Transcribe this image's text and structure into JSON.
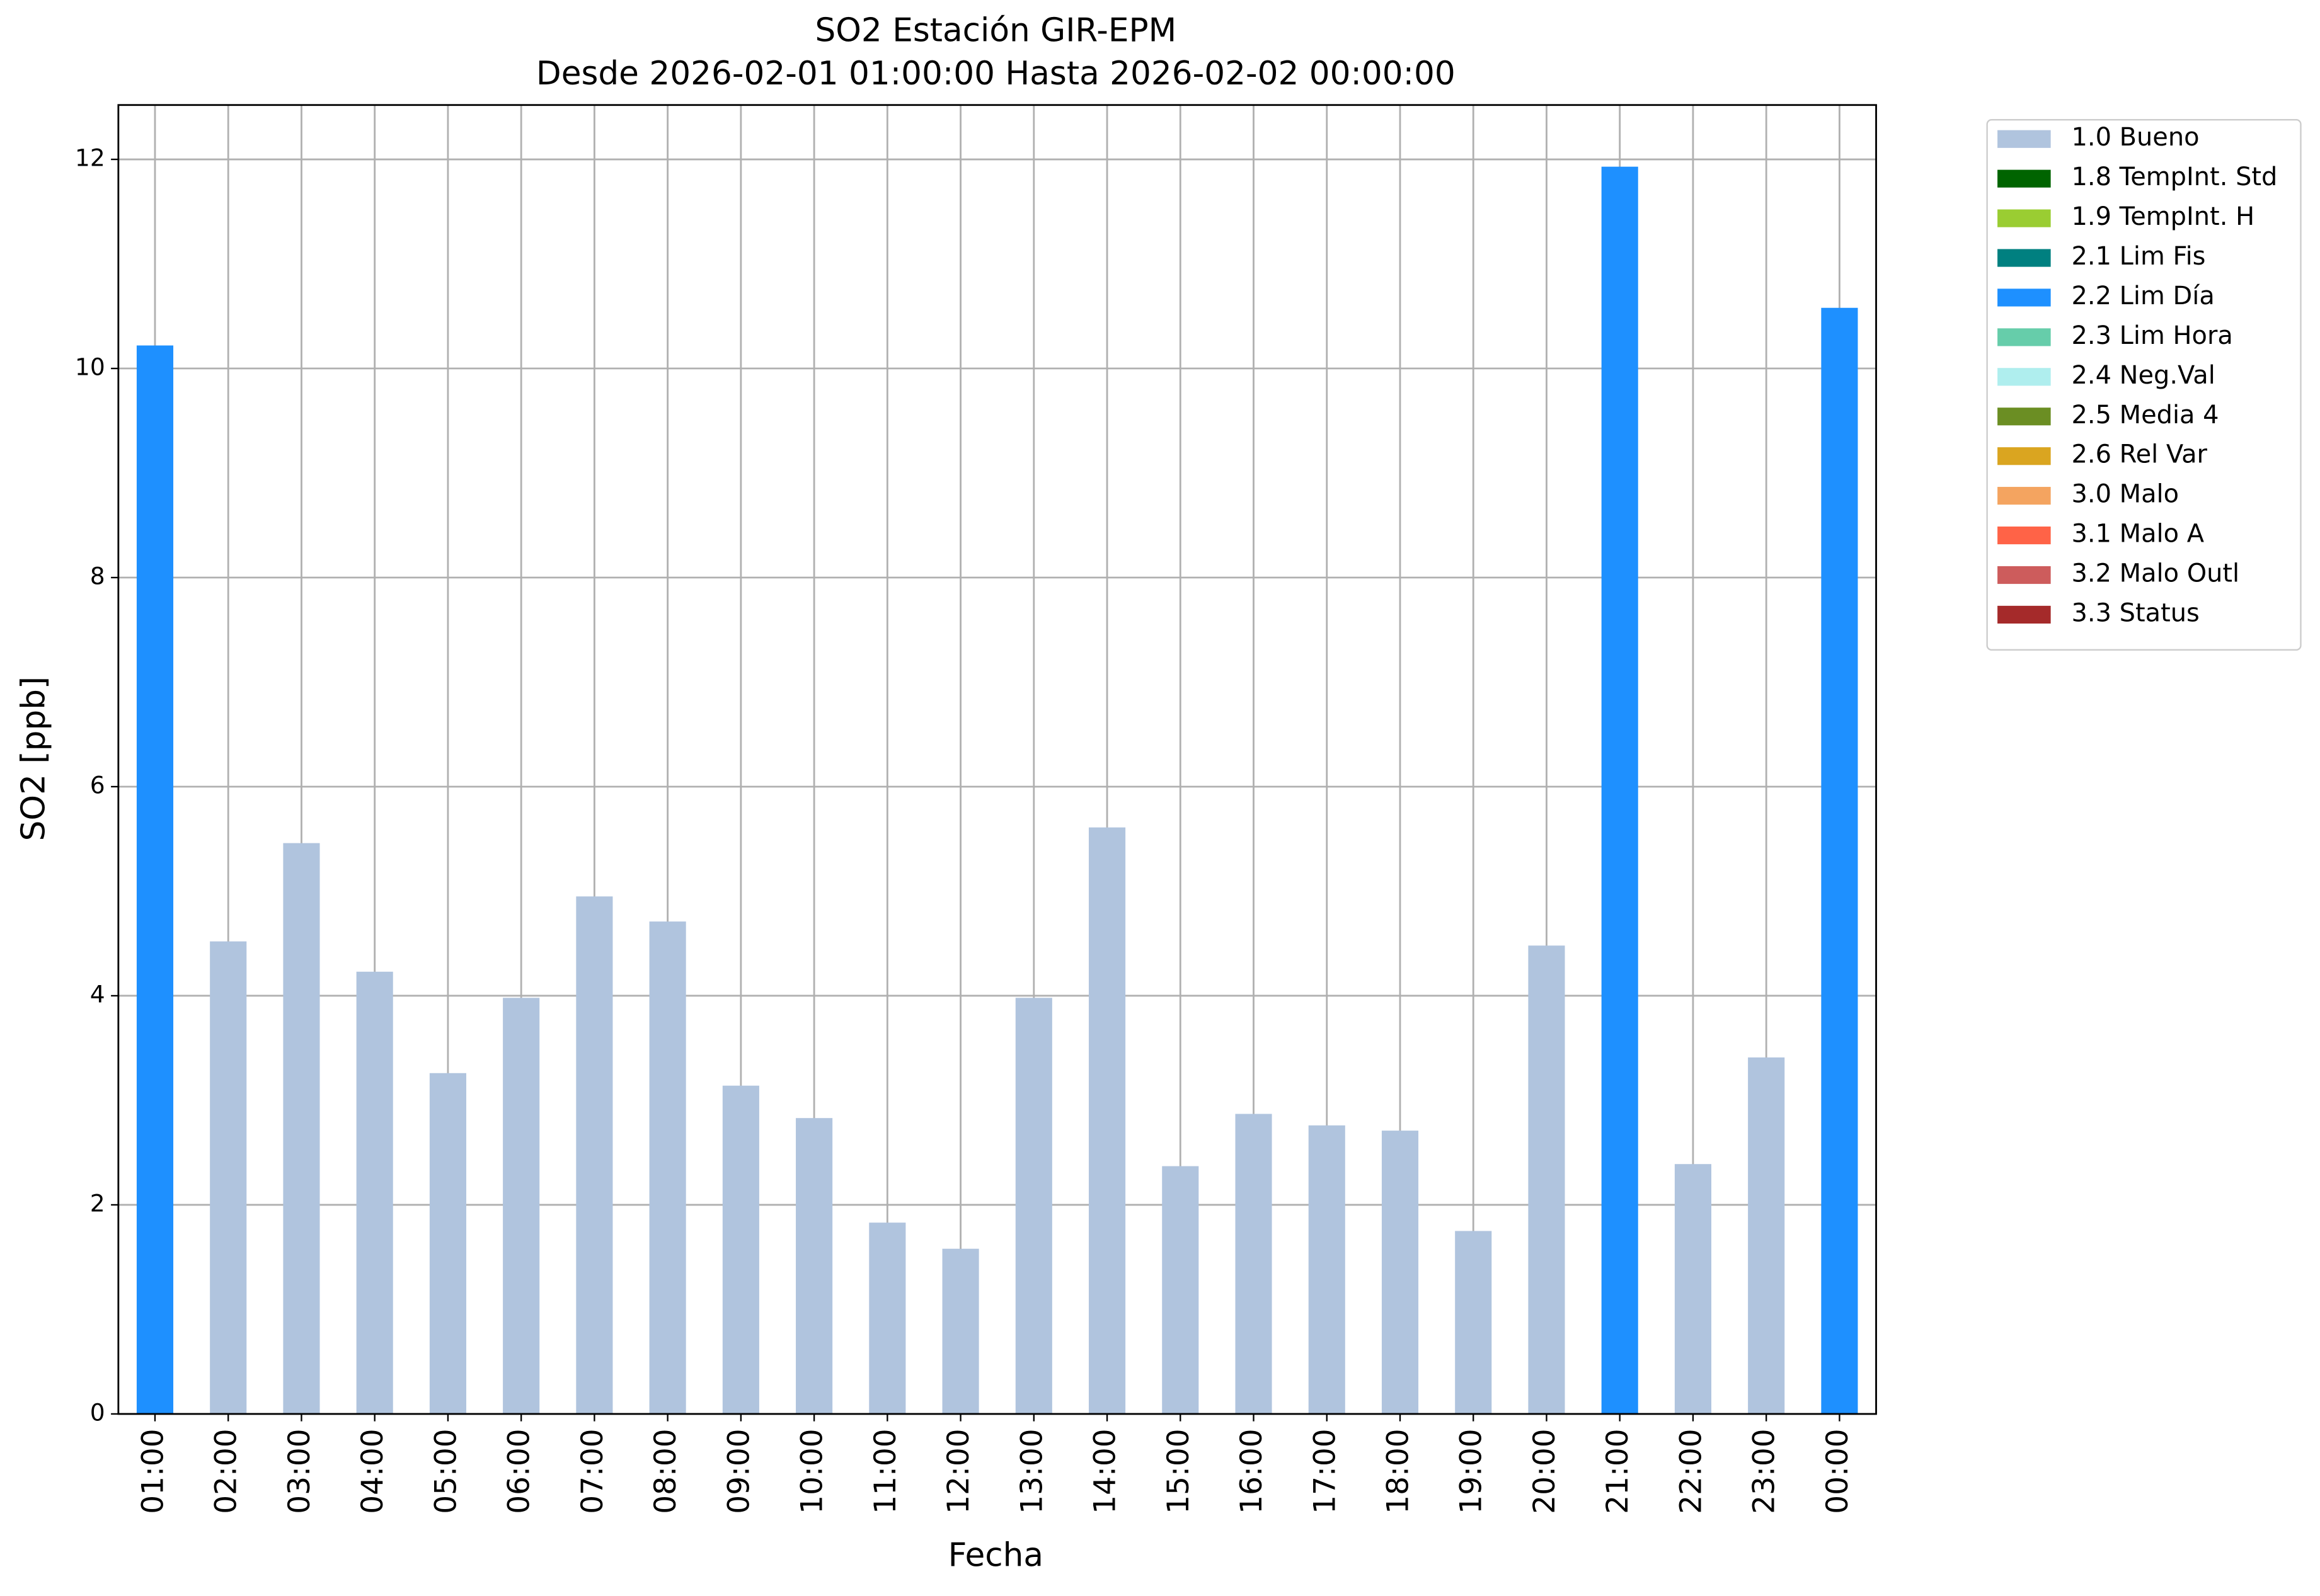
{
  "chart_data": {
    "type": "stacked_bar",
    "title": "SO2 Estación GIR-EPM",
    "subtitle": "Desde 2026-02-01 01:00:00 Hasta 2026-02-02 00:00:00",
    "x_label": "Fecha",
    "y_label": "SO2 [ppb]",
    "categories": [
      "01:00",
      "02:00",
      "03:00",
      "04:00",
      "05:00",
      "06:00",
      "07:00",
      "08:00",
      "09:00",
      "10:00",
      "11:00",
      "12:00",
      "13:00",
      "14:00",
      "15:00",
      "16:00",
      "17:00",
      "18:00",
      "19:00",
      "20:00",
      "21:00",
      "22:00",
      "23:00",
      "00:00"
    ],
    "series": [
      {
        "name": "1.0 Bueno",
        "color": "#b0c4de",
        "values": [
          null,
          4.52,
          5.46,
          4.23,
          3.26,
          3.98,
          4.95,
          4.71,
          3.14,
          2.83,
          1.83,
          1.58,
          3.98,
          5.61,
          2.37,
          2.87,
          2.76,
          2.71,
          1.75,
          4.48,
          null,
          2.39,
          3.41,
          null
        ]
      },
      {
        "name": "1.8 TempInt. Std",
        "color": "#006400",
        "values": [
          null,
          null,
          null,
          null,
          null,
          null,
          null,
          null,
          null,
          null,
          null,
          null,
          null,
          null,
          null,
          null,
          null,
          null,
          null,
          null,
          null,
          null,
          null,
          null
        ]
      },
      {
        "name": "1.9 TempInt. H",
        "color": "#9acd32",
        "values": [
          null,
          null,
          null,
          null,
          null,
          null,
          null,
          null,
          null,
          null,
          null,
          null,
          null,
          null,
          null,
          null,
          null,
          null,
          null,
          null,
          null,
          null,
          null,
          null
        ]
      },
      {
        "name": "2.1 Lim Fis",
        "color": "#008080",
        "values": [
          null,
          null,
          null,
          null,
          null,
          null,
          null,
          null,
          null,
          null,
          null,
          null,
          null,
          null,
          null,
          null,
          null,
          null,
          null,
          null,
          null,
          null,
          null,
          null
        ]
      },
      {
        "name": "2.2 Lim Día",
        "color": "#1e90ff",
        "values": [
          10.22,
          null,
          null,
          null,
          null,
          null,
          null,
          null,
          null,
          null,
          null,
          null,
          null,
          null,
          null,
          null,
          null,
          null,
          null,
          null,
          11.93,
          null,
          null,
          10.58
        ]
      },
      {
        "name": "2.3 Lim Hora",
        "color": "#66cdaa",
        "values": [
          null,
          null,
          null,
          null,
          null,
          null,
          null,
          null,
          null,
          null,
          null,
          null,
          null,
          null,
          null,
          null,
          null,
          null,
          null,
          null,
          null,
          null,
          null,
          null
        ]
      },
      {
        "name": "2.4 Neg.Val",
        "color": "#afeeee",
        "values": [
          null,
          null,
          null,
          null,
          null,
          null,
          null,
          null,
          null,
          null,
          null,
          null,
          null,
          null,
          null,
          null,
          null,
          null,
          null,
          null,
          null,
          null,
          null,
          null
        ]
      },
      {
        "name": "2.5 Media 4",
        "color": "#6b8e23",
        "values": [
          null,
          null,
          null,
          null,
          null,
          null,
          null,
          null,
          null,
          null,
          null,
          null,
          null,
          null,
          null,
          null,
          null,
          null,
          null,
          null,
          null,
          null,
          null,
          null
        ]
      },
      {
        "name": "2.6 Rel Var",
        "color": "#daa520",
        "values": [
          null,
          null,
          null,
          null,
          null,
          null,
          null,
          null,
          null,
          null,
          null,
          null,
          null,
          null,
          null,
          null,
          null,
          null,
          null,
          null,
          null,
          null,
          null,
          null
        ]
      },
      {
        "name": "3.0 Malo",
        "color": "#f4a460",
        "values": [
          null,
          null,
          null,
          null,
          null,
          null,
          null,
          null,
          null,
          null,
          null,
          null,
          null,
          null,
          null,
          null,
          null,
          null,
          null,
          null,
          null,
          null,
          null,
          null
        ]
      },
      {
        "name": "3.1 Malo A",
        "color": "#ff6347",
        "values": [
          null,
          null,
          null,
          null,
          null,
          null,
          null,
          null,
          null,
          null,
          null,
          null,
          null,
          null,
          null,
          null,
          null,
          null,
          null,
          null,
          null,
          null,
          null,
          null
        ]
      },
      {
        "name": "3.2 Malo Outl",
        "color": "#cd5c5c",
        "values": [
          null,
          null,
          null,
          null,
          null,
          null,
          null,
          null,
          null,
          null,
          null,
          null,
          null,
          null,
          null,
          null,
          null,
          null,
          null,
          null,
          null,
          null,
          null,
          null
        ]
      },
      {
        "name": "3.3 Status",
        "color": "#a52a2a",
        "values": [
          null,
          null,
          null,
          null,
          null,
          null,
          null,
          null,
          null,
          null,
          null,
          null,
          null,
          null,
          null,
          null,
          null,
          null,
          null,
          null,
          null,
          null,
          null,
          null
        ]
      }
    ],
    "ylim": [
      0,
      12.52
    ],
    "yticks": [
      0,
      2,
      4,
      6,
      8,
      10,
      12
    ],
    "grid": true,
    "legend": "outside-right"
  }
}
